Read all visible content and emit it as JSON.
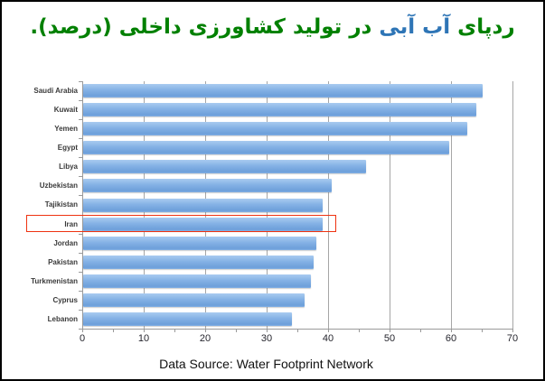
{
  "window": {
    "background": "#ffffff",
    "border_color": "#000000"
  },
  "title": {
    "full_text": "ردپای آب آبی در تولید کشاورزی داخلی (درصد).",
    "parts": [
      {
        "text": "ردپای ",
        "color": "#008000"
      },
      {
        "text": "آب آبی ",
        "color": "#2e75b6"
      },
      {
        "text": "در تولید کشاورزی داخلی (درصد).",
        "color": "#008000"
      }
    ]
  },
  "chart_data": {
    "type": "bar",
    "orientation": "horizontal",
    "title": "ردپای آب آبی در تولید کشاورزی داخلی (درصد)",
    "xlabel": "",
    "ylabel": "",
    "xlim": [
      0,
      70
    ],
    "x_ticks": [
      0,
      10,
      20,
      30,
      40,
      50,
      60,
      70
    ],
    "minor_tick_step": 5,
    "grid": true,
    "legend": "none",
    "categories": [
      "Saudi Arabia",
      "Kuwait",
      "Yemen",
      "Egypt",
      "Libya",
      "Uzbekistan",
      "Tajikistan",
      "Iran",
      "Jordan",
      "Pakistan",
      "Turkmenistan",
      "Cyprus",
      "Lebanon"
    ],
    "values": [
      65,
      64,
      62.5,
      59.5,
      46,
      40.5,
      39,
      39,
      38,
      37.5,
      37,
      36,
      34
    ],
    "bar_color_top": "#a9cbf0",
    "bar_color_mid": "#84b1e5",
    "bar_color_bottom": "#6d9fda",
    "gridline_color": "#a6a6a6",
    "axis_color": "#9a9a9a",
    "tick_label_color": "#26262e",
    "category_label_color": "#3a3a3a",
    "highlight": {
      "category": "Iran",
      "box_color": "#ee3311"
    }
  },
  "footer": {
    "text": "Data Source: Water Footprint Network",
    "color": "#111111"
  }
}
